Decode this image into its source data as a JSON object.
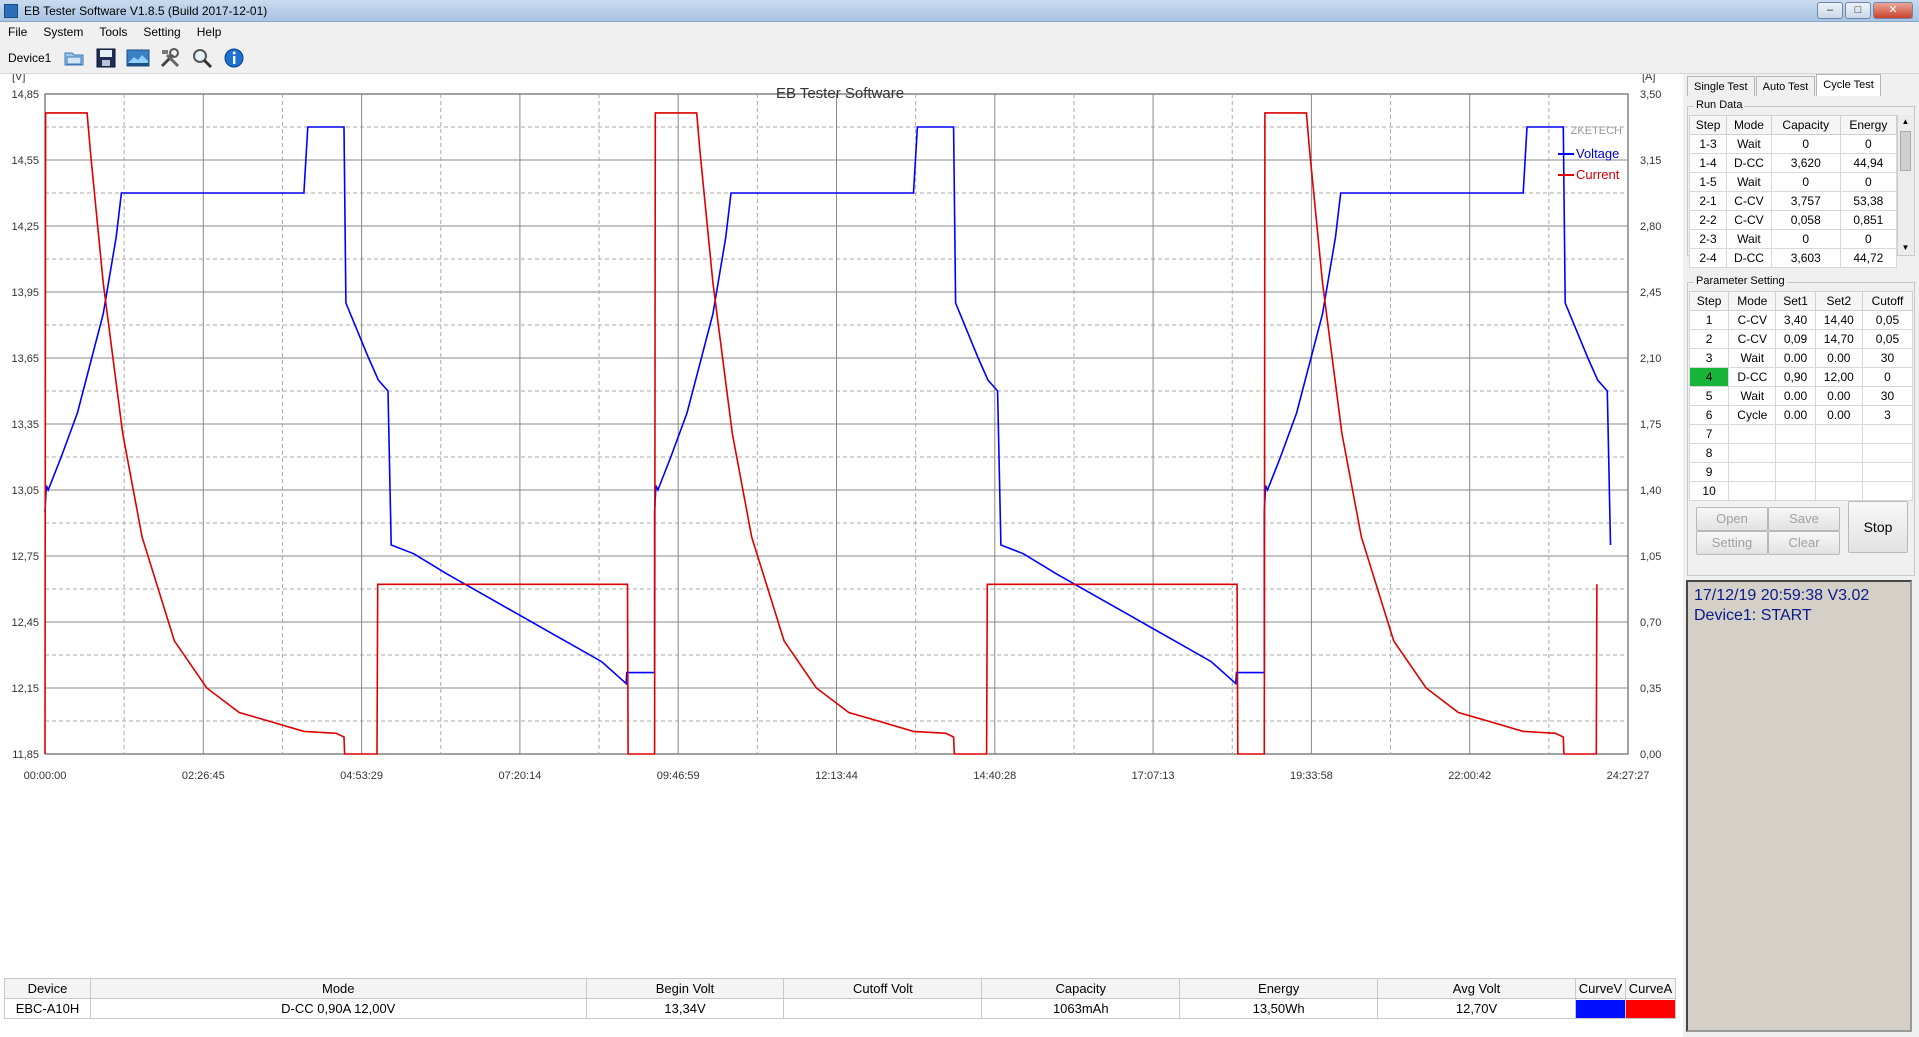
{
  "window": {
    "title": "EB Tester Software V1.8.5 (Build 2017-12-01)",
    "minimize": "–",
    "maximize": "□",
    "close": "✕"
  },
  "menu": [
    "File",
    "System",
    "Tools",
    "Setting",
    "Help"
  ],
  "toolbar": {
    "device": "Device1",
    "icons": [
      "folder-open-icon",
      "save-icon",
      "image-icon",
      "tools-icon",
      "search-icon",
      "info-icon"
    ]
  },
  "chart_data": {
    "type": "line",
    "title": "EB Tester Software",
    "watermark": "ZKETECH",
    "left_unit": "[V]",
    "right_unit": "[A]",
    "y_left": {
      "min": 11.85,
      "max": 14.85,
      "ticks": [
        "14,85",
        "14,55",
        "14,25",
        "13,95",
        "13,65",
        "13,35",
        "13,05",
        "12,75",
        "12,45",
        "12,15",
        "11,85"
      ]
    },
    "y_right": {
      "min": 0,
      "max": 3.5,
      "ticks": [
        "3,50",
        "3,15",
        "2,80",
        "2,45",
        "2,10",
        "1,75",
        "1,40",
        "1,05",
        "0,70",
        "0,35",
        "0,00"
      ]
    },
    "x_ticks": [
      "00:00:00",
      "02:26:45",
      "04:53:29",
      "07:20:14",
      "09:46:59",
      "12:13:44",
      "14:40:28",
      "17:07:13",
      "19:33:58",
      "22:00:42",
      "24:27:27"
    ],
    "x_range_hours": [
      0,
      24.46
    ],
    "cycle_period_hours": 9.42,
    "series": [
      {
        "name": "Voltage",
        "color": "#0000ff",
        "axis": "left",
        "cycle_points": [
          [
            0,
            12.95
          ],
          [
            0.02,
            13.07
          ],
          [
            0.05,
            13.05
          ],
          [
            0.25,
            13.2
          ],
          [
            0.5,
            13.4
          ],
          [
            0.9,
            13.85
          ],
          [
            1.1,
            14.2
          ],
          [
            1.18,
            14.4
          ],
          [
            4,
            14.4
          ],
          [
            4.06,
            14.7
          ],
          [
            4.62,
            14.7
          ],
          [
            4.65,
            13.9
          ],
          [
            5.0,
            13.65
          ],
          [
            5.15,
            13.55
          ],
          [
            5.3,
            13.5
          ],
          [
            5.35,
            12.8
          ],
          [
            5.7,
            12.76
          ],
          [
            6.2,
            12.67
          ],
          [
            6.8,
            12.57
          ],
          [
            7.4,
            12.47
          ],
          [
            8.0,
            12.37
          ],
          [
            8.6,
            12.27
          ],
          [
            8.98,
            12.17
          ],
          [
            8.99,
            12.22
          ],
          [
            9.42,
            12.22
          ]
        ]
      },
      {
        "name": "Current",
        "color": "#dd0000",
        "axis": "right",
        "cycle_points": [
          [
            0,
            0
          ],
          [
            0.01,
            3.4
          ],
          [
            0.65,
            3.4
          ],
          [
            0.7,
            3.2
          ],
          [
            0.9,
            2.5
          ],
          [
            1.2,
            1.7
          ],
          [
            1.5,
            1.15
          ],
          [
            2.0,
            0.6
          ],
          [
            2.5,
            0.35
          ],
          [
            3.0,
            0.22
          ],
          [
            3.5,
            0.17
          ],
          [
            4.0,
            0.12
          ],
          [
            4.5,
            0.11
          ],
          [
            4.62,
            0.09
          ],
          [
            4.63,
            0
          ],
          [
            5.13,
            0
          ],
          [
            5.14,
            0.9
          ],
          [
            9.0,
            0.9
          ],
          [
            9.01,
            0
          ],
          [
            9.42,
            0
          ]
        ]
      }
    ],
    "grid": true,
    "legend_placement": "top-right"
  },
  "tabs": [
    "Single Test",
    "Auto Test",
    "Cycle Test"
  ],
  "active_tab": 2,
  "run_data": {
    "title": "Run Data",
    "columns": [
      "Step",
      "Mode",
      "Capacity",
      "Energy"
    ],
    "rows": [
      [
        "1-3",
        "Wait",
        "0",
        "0"
      ],
      [
        "1-4",
        "D-CC",
        "3,620",
        "44,94"
      ],
      [
        "1-5",
        "Wait",
        "0",
        "0"
      ],
      [
        "2-1",
        "C-CV",
        "3,757",
        "53,38"
      ],
      [
        "2-2",
        "C-CV",
        "0,058",
        "0,851"
      ],
      [
        "2-3",
        "Wait",
        "0",
        "0"
      ],
      [
        "2-4",
        "D-CC",
        "3,603",
        "44,72"
      ]
    ]
  },
  "param_setting": {
    "title": "Parameter Setting",
    "columns": [
      "Step",
      "Mode",
      "Set1",
      "Set2",
      "Cutoff"
    ],
    "rows": [
      [
        "1",
        "C-CV",
        "3,40",
        "14,40",
        "0,05"
      ],
      [
        "2",
        "C-CV",
        "0,09",
        "14,70",
        "0,05"
      ],
      [
        "3",
        "Wait",
        "0.00",
        "0.00",
        "30"
      ],
      [
        "4",
        "D-CC",
        "0,90",
        "12,00",
        "0"
      ],
      [
        "5",
        "Wait",
        "0.00",
        "0.00",
        "30"
      ],
      [
        "6",
        "Cycle",
        "0.00",
        "0.00",
        "3"
      ],
      [
        "7",
        "",
        "",
        "",
        ""
      ],
      [
        "8",
        "",
        "",
        "",
        ""
      ],
      [
        "9",
        "",
        "",
        "",
        ""
      ],
      [
        "10",
        "",
        "",
        "",
        ""
      ]
    ],
    "active_step": "4"
  },
  "buttons": {
    "open": "Open",
    "save": "Save",
    "setting": "Setting",
    "clear": "Clear",
    "stop": "Stop"
  },
  "status": {
    "line1": "17/12/19 20:59:38  V3.02",
    "line2": "Device1: START"
  },
  "summary": {
    "columns": [
      "Device",
      "Mode",
      "Begin Volt",
      "Cutoff Volt",
      "Capacity",
      "Energy",
      "Avg Volt",
      "CurveV",
      "CurveA"
    ],
    "values": [
      "EBC-A10H",
      "D-CC  0,90A  12,00V",
      "13,34V",
      "",
      "1063mAh",
      "13,50Wh",
      "12,70V"
    ],
    "curve_colors": [
      "#0010ff",
      "#ff0000"
    ]
  }
}
